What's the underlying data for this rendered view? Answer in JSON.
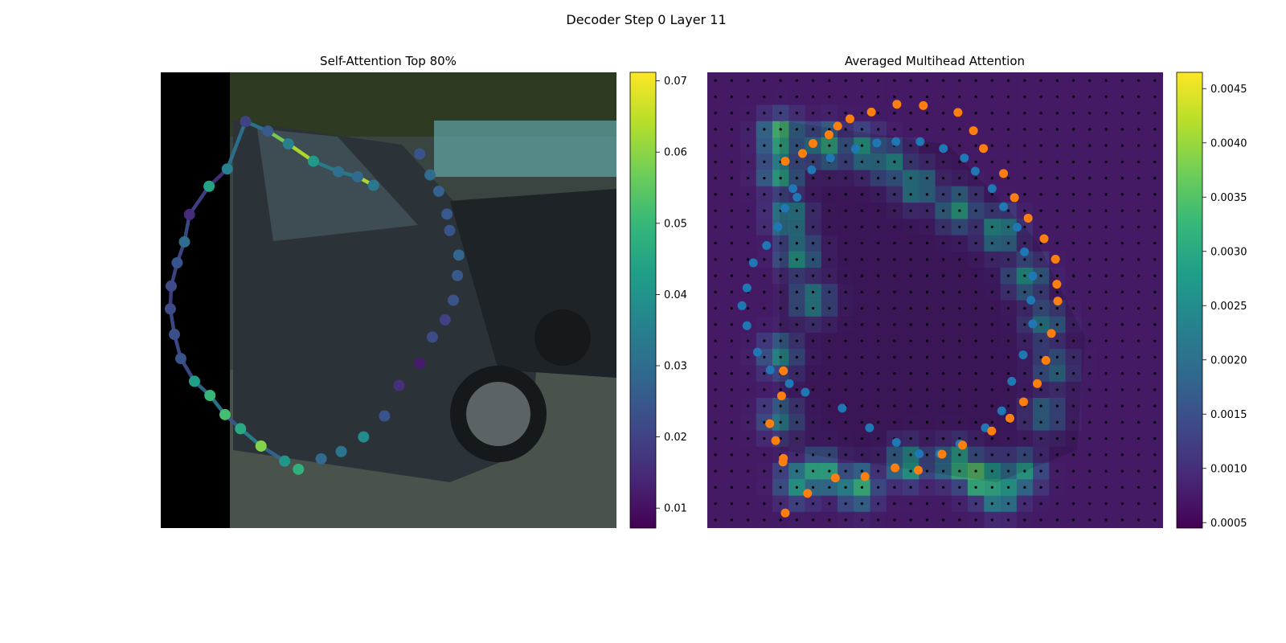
{
  "figure": {
    "suptitle": "Decoder Step 0 Layer 11"
  },
  "colors": {
    "viridis": [
      "#440154",
      "#482878",
      "#3e4989",
      "#31688e",
      "#26828e",
      "#1f9e89",
      "#35b779",
      "#6ece58",
      "#b5de2b",
      "#fde725"
    ],
    "blue_points": "#1f77b4",
    "orange_points": "#ff7f0e",
    "grid_dots": "#000000",
    "photo_padding": "#000000"
  },
  "chart_data": [
    {
      "type": "scatter",
      "title": "Self-Attention Top 80%",
      "background": "street photo with dark grey hatchback car (left black padding strip)",
      "xlim": [
        0,
        1
      ],
      "ylim": [
        0,
        1
      ],
      "colorbar": {
        "vmin": 0.0072,
        "vmax": 0.0712,
        "ticks": [
          0.01,
          0.02,
          0.03,
          0.04,
          0.05,
          0.06,
          0.07
        ],
        "tick_labels": [
          "0.01",
          "0.02",
          "0.03",
          "0.04",
          "0.05",
          "0.06",
          "0.07"
        ]
      },
      "points": [
        {
          "x": 0.467,
          "y": 0.248,
          "v": 0.033
        },
        {
          "x": 0.432,
          "y": 0.229,
          "v": 0.029
        },
        {
          "x": 0.39,
          "y": 0.218,
          "v": 0.031
        },
        {
          "x": 0.335,
          "y": 0.195,
          "v": 0.042
        },
        {
          "x": 0.28,
          "y": 0.157,
          "v": 0.035
        },
        {
          "x": 0.235,
          "y": 0.129,
          "v": 0.025
        },
        {
          "x": 0.186,
          "y": 0.108,
          "v": 0.02
        },
        {
          "x": 0.146,
          "y": 0.212,
          "v": 0.035
        },
        {
          "x": 0.106,
          "y": 0.25,
          "v": 0.044
        },
        {
          "x": 0.063,
          "y": 0.312,
          "v": 0.015
        },
        {
          "x": 0.052,
          "y": 0.372,
          "v": 0.03
        },
        {
          "x": 0.036,
          "y": 0.418,
          "v": 0.024
        },
        {
          "x": 0.023,
          "y": 0.469,
          "v": 0.022
        },
        {
          "x": 0.021,
          "y": 0.519,
          "v": 0.022
        },
        {
          "x": 0.03,
          "y": 0.575,
          "v": 0.023
        },
        {
          "x": 0.044,
          "y": 0.628,
          "v": 0.024
        },
        {
          "x": 0.074,
          "y": 0.678,
          "v": 0.043
        },
        {
          "x": 0.108,
          "y": 0.709,
          "v": 0.05
        },
        {
          "x": 0.141,
          "y": 0.751,
          "v": 0.052
        },
        {
          "x": 0.175,
          "y": 0.782,
          "v": 0.046
        },
        {
          "x": 0.22,
          "y": 0.82,
          "v": 0.059
        },
        {
          "x": 0.272,
          "y": 0.853,
          "v": 0.041
        },
        {
          "x": 0.302,
          "y": 0.871,
          "v": 0.048
        },
        {
          "x": 0.352,
          "y": 0.848,
          "v": 0.029
        },
        {
          "x": 0.396,
          "y": 0.832,
          "v": 0.032
        },
        {
          "x": 0.445,
          "y": 0.8,
          "v": 0.038
        },
        {
          "x": 0.491,
          "y": 0.754,
          "v": 0.024
        },
        {
          "x": 0.523,
          "y": 0.687,
          "v": 0.016
        },
        {
          "x": 0.568,
          "y": 0.638,
          "v": 0.012
        },
        {
          "x": 0.596,
          "y": 0.581,
          "v": 0.022
        },
        {
          "x": 0.624,
          "y": 0.543,
          "v": 0.02
        },
        {
          "x": 0.642,
          "y": 0.5,
          "v": 0.024
        },
        {
          "x": 0.651,
          "y": 0.446,
          "v": 0.025
        },
        {
          "x": 0.654,
          "y": 0.401,
          "v": 0.028
        },
        {
          "x": 0.634,
          "y": 0.347,
          "v": 0.024
        },
        {
          "x": 0.628,
          "y": 0.311,
          "v": 0.025
        },
        {
          "x": 0.61,
          "y": 0.261,
          "v": 0.027
        },
        {
          "x": 0.591,
          "y": 0.225,
          "v": 0.03
        },
        {
          "x": 0.568,
          "y": 0.179,
          "v": 0.024
        }
      ],
      "segments": [
        {
          "from": 0,
          "to": 1,
          "v": 0.064
        },
        {
          "from": 1,
          "to": 2,
          "v": 0.034
        },
        {
          "from": 2,
          "to": 3,
          "v": 0.034
        },
        {
          "from": 3,
          "to": 4,
          "v": 0.064
        },
        {
          "from": 4,
          "to": 5,
          "v": 0.058
        },
        {
          "from": 5,
          "to": 6,
          "v": 0.032
        },
        {
          "from": 6,
          "to": 7,
          "v": 0.031
        },
        {
          "from": 7,
          "to": 8,
          "v": 0.016
        },
        {
          "from": 8,
          "to": 9,
          "v": 0.02
        },
        {
          "from": 9,
          "to": 10,
          "v": 0.022
        },
        {
          "from": 10,
          "to": 11,
          "v": 0.021
        },
        {
          "from": 11,
          "to": 12,
          "v": 0.021
        },
        {
          "from": 12,
          "to": 13,
          "v": 0.02
        },
        {
          "from": 13,
          "to": 14,
          "v": 0.022
        },
        {
          "from": 14,
          "to": 15,
          "v": 0.022
        },
        {
          "from": 15,
          "to": 16,
          "v": 0.022
        },
        {
          "from": 16,
          "to": 17,
          "v": 0.029
        },
        {
          "from": 17,
          "to": 18,
          "v": 0.033
        },
        {
          "from": 18,
          "to": 19,
          "v": 0.025
        },
        {
          "from": 19,
          "to": 20,
          "v": 0.035
        },
        {
          "from": 20,
          "to": 21,
          "v": 0.028
        }
      ]
    },
    {
      "type": "heatmap",
      "title": "Averaged Multihead Attention",
      "background": "same street photo overlaid with attention heatmap (dotted reference grid)",
      "grid_size": 28,
      "colorbar": {
        "vmin": 0.00045,
        "vmax": 0.00465,
        "ticks": [
          0.0005,
          0.001,
          0.0015,
          0.002,
          0.0025,
          0.003,
          0.0035,
          0.004,
          0.0045
        ],
        "tick_labels": [
          "0.0005",
          "0.0010",
          "0.0015",
          "0.0020",
          "0.0025",
          "0.0030",
          "0.0035",
          "0.0040",
          "0.0045"
        ]
      },
      "attention_hotspots": [
        {
          "x": 0.16,
          "y": 0.14,
          "v": 0.0038
        },
        {
          "x": 0.16,
          "y": 0.22,
          "v": 0.0032
        },
        {
          "x": 0.18,
          "y": 0.32,
          "v": 0.003
        },
        {
          "x": 0.2,
          "y": 0.4,
          "v": 0.003
        },
        {
          "x": 0.23,
          "y": 0.5,
          "v": 0.0028
        },
        {
          "x": 0.26,
          "y": 0.16,
          "v": 0.0032
        },
        {
          "x": 0.34,
          "y": 0.17,
          "v": 0.003
        },
        {
          "x": 0.4,
          "y": 0.2,
          "v": 0.0028
        },
        {
          "x": 0.46,
          "y": 0.25,
          "v": 0.0029
        },
        {
          "x": 0.55,
          "y": 0.3,
          "v": 0.003
        },
        {
          "x": 0.64,
          "y": 0.35,
          "v": 0.0031
        },
        {
          "x": 0.7,
          "y": 0.45,
          "v": 0.0028
        },
        {
          "x": 0.74,
          "y": 0.55,
          "v": 0.0024
        },
        {
          "x": 0.76,
          "y": 0.65,
          "v": 0.0022
        },
        {
          "x": 0.74,
          "y": 0.75,
          "v": 0.0022
        },
        {
          "x": 0.25,
          "y": 0.88,
          "v": 0.0036
        },
        {
          "x": 0.33,
          "y": 0.91,
          "v": 0.0034
        },
        {
          "x": 0.44,
          "y": 0.86,
          "v": 0.0032
        },
        {
          "x": 0.55,
          "y": 0.86,
          "v": 0.0036
        },
        {
          "x": 0.6,
          "y": 0.89,
          "v": 0.0042
        },
        {
          "x": 0.64,
          "y": 0.92,
          "v": 0.0036
        },
        {
          "x": 0.69,
          "y": 0.88,
          "v": 0.003
        },
        {
          "x": 0.16,
          "y": 0.62,
          "v": 0.0026
        },
        {
          "x": 0.16,
          "y": 0.76,
          "v": 0.0024
        },
        {
          "x": 0.2,
          "y": 0.9,
          "v": 0.003
        }
      ],
      "series": [
        {
          "name": "",
          "color_key": "blue_points",
          "points": [
            {
              "x": 0.17,
              "y": 0.298
            },
            {
              "x": 0.188,
              "y": 0.255
            },
            {
              "x": 0.229,
              "y": 0.214
            },
            {
              "x": 0.27,
              "y": 0.188
            },
            {
              "x": 0.325,
              "y": 0.168
            },
            {
              "x": 0.372,
              "y": 0.155
            },
            {
              "x": 0.414,
              "y": 0.152
            },
            {
              "x": 0.467,
              "y": 0.152
            },
            {
              "x": 0.518,
              "y": 0.167
            },
            {
              "x": 0.564,
              "y": 0.188
            },
            {
              "x": 0.588,
              "y": 0.217
            },
            {
              "x": 0.625,
              "y": 0.255
            },
            {
              "x": 0.65,
              "y": 0.295
            },
            {
              "x": 0.68,
              "y": 0.34
            },
            {
              "x": 0.696,
              "y": 0.394
            },
            {
              "x": 0.714,
              "y": 0.447
            },
            {
              "x": 0.71,
              "y": 0.5
            },
            {
              "x": 0.714,
              "y": 0.552
            },
            {
              "x": 0.693,
              "y": 0.62
            },
            {
              "x": 0.668,
              "y": 0.678
            },
            {
              "x": 0.646,
              "y": 0.743
            },
            {
              "x": 0.61,
              "y": 0.78
            },
            {
              "x": 0.554,
              "y": 0.815
            },
            {
              "x": 0.51,
              "y": 0.837
            },
            {
              "x": 0.465,
              "y": 0.837
            },
            {
              "x": 0.415,
              "y": 0.812
            },
            {
              "x": 0.356,
              "y": 0.78
            },
            {
              "x": 0.296,
              "y": 0.737
            },
            {
              "x": 0.215,
              "y": 0.702
            },
            {
              "x": 0.18,
              "y": 0.683
            },
            {
              "x": 0.138,
              "y": 0.653
            },
            {
              "x": 0.11,
              "y": 0.614
            },
            {
              "x": 0.087,
              "y": 0.556
            },
            {
              "x": 0.076,
              "y": 0.512
            },
            {
              "x": 0.087,
              "y": 0.473
            },
            {
              "x": 0.101,
              "y": 0.418
            },
            {
              "x": 0.13,
              "y": 0.38
            },
            {
              "x": 0.155,
              "y": 0.339
            },
            {
              "x": 0.197,
              "y": 0.274
            }
          ]
        },
        {
          "name": "",
          "color_key": "orange_points",
          "points": [
            {
              "x": 0.171,
              "y": 0.195
            },
            {
              "x": 0.209,
              "y": 0.178
            },
            {
              "x": 0.232,
              "y": 0.156
            },
            {
              "x": 0.267,
              "y": 0.137
            },
            {
              "x": 0.286,
              "y": 0.118
            },
            {
              "x": 0.313,
              "y": 0.102
            },
            {
              "x": 0.36,
              "y": 0.087
            },
            {
              "x": 0.416,
              "y": 0.07
            },
            {
              "x": 0.474,
              "y": 0.073
            },
            {
              "x": 0.55,
              "y": 0.088
            },
            {
              "x": 0.584,
              "y": 0.128
            },
            {
              "x": 0.606,
              "y": 0.167
            },
            {
              "x": 0.65,
              "y": 0.222
            },
            {
              "x": 0.674,
              "y": 0.275
            },
            {
              "x": 0.704,
              "y": 0.32
            },
            {
              "x": 0.739,
              "y": 0.365
            },
            {
              "x": 0.764,
              "y": 0.41
            },
            {
              "x": 0.767,
              "y": 0.465
            },
            {
              "x": 0.769,
              "y": 0.502
            },
            {
              "x": 0.755,
              "y": 0.573
            },
            {
              "x": 0.743,
              "y": 0.632
            },
            {
              "x": 0.724,
              "y": 0.683
            },
            {
              "x": 0.694,
              "y": 0.723
            },
            {
              "x": 0.664,
              "y": 0.759
            },
            {
              "x": 0.624,
              "y": 0.787
            },
            {
              "x": 0.56,
              "y": 0.818
            },
            {
              "x": 0.515,
              "y": 0.838
            },
            {
              "x": 0.463,
              "y": 0.873
            },
            {
              "x": 0.412,
              "y": 0.868
            },
            {
              "x": 0.346,
              "y": 0.887
            },
            {
              "x": 0.281,
              "y": 0.89
            },
            {
              "x": 0.22,
              "y": 0.924
            },
            {
              "x": 0.171,
              "y": 0.967
            },
            {
              "x": 0.167,
              "y": 0.847
            },
            {
              "x": 0.166,
              "y": 0.855
            },
            {
              "x": 0.15,
              "y": 0.808
            },
            {
              "x": 0.137,
              "y": 0.771
            },
            {
              "x": 0.163,
              "y": 0.71
            },
            {
              "x": 0.167,
              "y": 0.655
            }
          ]
        }
      ]
    }
  ]
}
